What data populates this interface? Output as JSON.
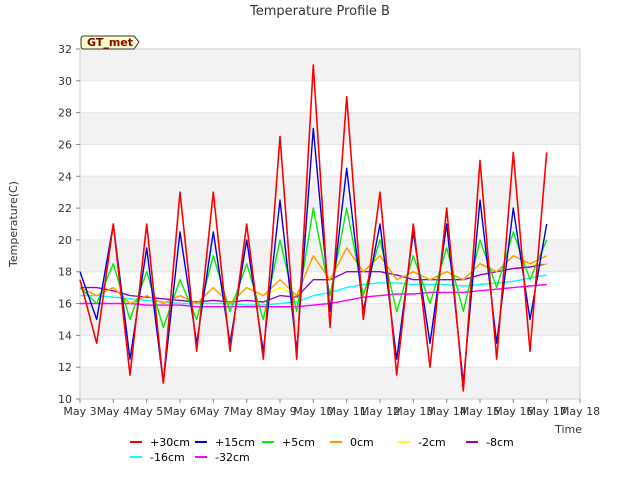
{
  "chart_data": {
    "type": "line",
    "title": "Temperature Profile B",
    "badge": "GT_met",
    "xlabel": "Time",
    "ylabel": "Temperature(C)",
    "ylim": [
      10,
      32
    ],
    "yticks": [
      10,
      12,
      14,
      16,
      18,
      20,
      22,
      24,
      26,
      28,
      30,
      32
    ],
    "xlim": [
      0,
      15
    ],
    "xticks": [
      "May 3",
      "May 4",
      "May 5",
      "May 6",
      "May 7",
      "May 8",
      "May 9",
      "May 10",
      "May 11",
      "May 12",
      "May 13",
      "May 14",
      "May 15",
      "May 16",
      "May 17",
      "May 18"
    ],
    "x_days": [
      0,
      0.5,
      1,
      1.5,
      2,
      2.5,
      3,
      3.5,
      4,
      4.5,
      5,
      5.5,
      6,
      6.5,
      7,
      7.5,
      8,
      8.5,
      9,
      9.5,
      10,
      10.5,
      11,
      11.5,
      12,
      12.5,
      13,
      13.5,
      14
    ],
    "grid": "horizontal bands",
    "legend_position": "bottom",
    "series": [
      {
        "name": "+30cm",
        "color": "#ff0000",
        "width": 1.6,
        "values": [
          17.5,
          13.5,
          21.0,
          11.5,
          21.0,
          11.0,
          23.0,
          13.0,
          23.0,
          13.0,
          21.0,
          12.5,
          26.5,
          12.5,
          31.0,
          14.5,
          29.0,
          15.0,
          23.0,
          11.5,
          21.0,
          12.0,
          22.0,
          10.5,
          25.0,
          12.5,
          25.5,
          13.0,
          25.5
        ]
      },
      {
        "name": "+15cm",
        "color": "#0000dd",
        "width": 1.4,
        "values": [
          18.0,
          15.0,
          21.0,
          12.5,
          19.5,
          11.0,
          20.5,
          13.5,
          20.5,
          13.5,
          20.0,
          13.0,
          22.5,
          13.0,
          27.0,
          15.5,
          24.5,
          15.5,
          21.0,
          12.5,
          20.5,
          13.5,
          21.0,
          11.0,
          22.5,
          13.5,
          22.0,
          15.0,
          21.0
        ]
      },
      {
        "name": "+5cm",
        "color": "#00ee00",
        "width": 1.4,
        "values": [
          17.0,
          16.0,
          18.5,
          15.0,
          18.0,
          14.5,
          17.5,
          15.0,
          19.0,
          15.5,
          18.5,
          15.0,
          20.0,
          15.5,
          22.0,
          16.5,
          22.0,
          16.5,
          20.0,
          15.5,
          19.0,
          16.0,
          19.5,
          15.5,
          20.0,
          17.0,
          20.5,
          17.5,
          20.0
        ]
      },
      {
        "name": "0cm",
        "color": "#ff9900",
        "width": 1.4,
        "values": [
          17.0,
          16.5,
          17.0,
          16.0,
          16.5,
          16.0,
          16.5,
          16.0,
          17.0,
          16.0,
          17.0,
          16.5,
          17.5,
          16.5,
          19.0,
          17.5,
          19.5,
          18.0,
          19.0,
          17.5,
          18.0,
          17.5,
          18.0,
          17.5,
          18.5,
          18.0,
          19.0,
          18.5,
          19.0
        ]
      },
      {
        "name": "-2cm",
        "color": "#ffff00",
        "width": 1.4,
        "values": [
          17.0,
          16.5,
          17.0,
          16.0,
          16.5,
          16.0,
          16.5,
          16.0,
          17.0,
          16.0,
          17.0,
          16.5,
          17.0,
          16.5,
          19.0,
          17.5,
          19.5,
          18.0,
          19.0,
          17.5,
          18.0,
          17.5,
          18.0,
          17.5,
          18.5,
          18.0,
          19.0,
          18.5,
          18.5
        ]
      },
      {
        "name": "-8cm",
        "color": "#9900cc",
        "width": 1.4,
        "values": [
          17.0,
          17.0,
          16.8,
          16.5,
          16.4,
          16.3,
          16.2,
          16.1,
          16.2,
          16.1,
          16.2,
          16.1,
          16.5,
          16.4,
          17.5,
          17.5,
          18.0,
          18.0,
          18.0,
          17.8,
          17.5,
          17.5,
          17.5,
          17.5,
          17.8,
          18.0,
          18.2,
          18.3,
          18.5
        ]
      },
      {
        "name": "-16cm",
        "color": "#00ffff",
        "width": 1.4,
        "values": [
          16.5,
          16.5,
          16.4,
          16.3,
          16.2,
          16.1,
          16.0,
          16.0,
          16.0,
          16.0,
          15.9,
          15.9,
          16.0,
          16.1,
          16.5,
          16.7,
          17.0,
          17.2,
          17.3,
          17.3,
          17.2,
          17.2,
          17.2,
          17.1,
          17.2,
          17.3,
          17.4,
          17.6,
          17.8
        ]
      },
      {
        "name": "-32cm",
        "color": "#ff00ff",
        "width": 1.4,
        "values": [
          16.0,
          16.0,
          16.0,
          16.0,
          15.9,
          15.9,
          15.9,
          15.8,
          15.8,
          15.8,
          15.8,
          15.8,
          15.8,
          15.8,
          15.9,
          16.0,
          16.2,
          16.4,
          16.5,
          16.6,
          16.6,
          16.7,
          16.7,
          16.7,
          16.8,
          16.9,
          17.0,
          17.1,
          17.2
        ]
      }
    ]
  }
}
